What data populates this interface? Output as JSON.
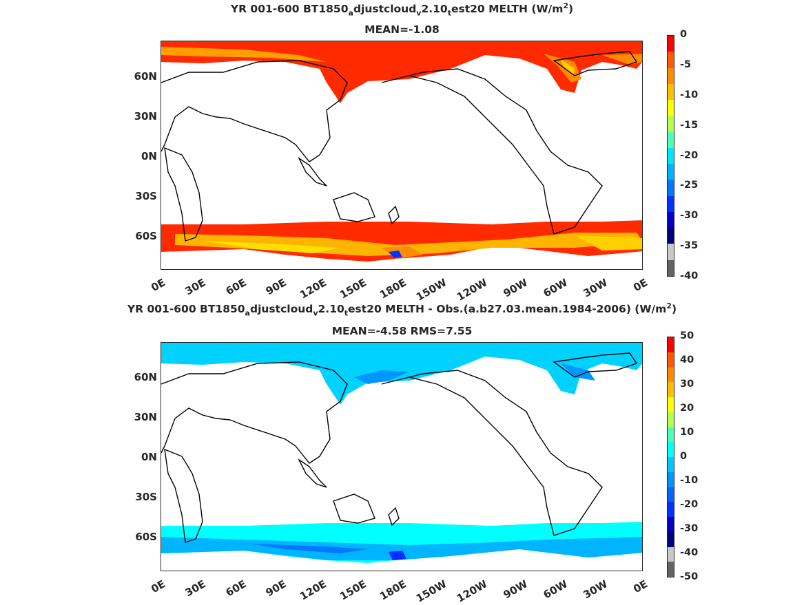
{
  "panel_top": {
    "title_prefix": "YR 001-600 BT1850",
    "title_sub1": "a",
    "title_mid1": "djustcloud",
    "title_sub2": "v",
    "title_mid2": "2.10",
    "title_sub3": "t",
    "title_mid3": "est20  MELTH (W/m",
    "title_sup": "2",
    "title_suffix": ")",
    "subtitle": "MEAN=-1.08",
    "colorbar_ticks": [
      "0",
      "-5",
      "-10",
      "-15",
      "-20",
      "-25",
      "-30",
      "-35",
      "-40"
    ],
    "colorbar_colors": [
      "#ff0000",
      "#ff5a00",
      "#ff8c00",
      "#ffbf00",
      "#ffff00",
      "#b4ff4b",
      "#4bffb4",
      "#00e6ff",
      "#00b4ff",
      "#0078ff",
      "#0032ff",
      "#0000c8",
      "#000080",
      "#c8c8c8",
      "#646464"
    ]
  },
  "panel_bottom": {
    "title_prefix": "YR 001-600 BT1850",
    "title_sub1": "a",
    "title_mid1": "djustcloud",
    "title_sub2": "v",
    "title_mid2": "2.10",
    "title_sub3": "t",
    "title_mid3": "est20 MELTH - Obs.(a.b27.03.mean.1984-2006) (W/m",
    "title_sup": "2",
    "title_suffix": ")",
    "subtitle": "MEAN=-4.58 RMS=7.55",
    "colorbar_ticks": [
      "50",
      "40",
      "30",
      "20",
      "10",
      "0",
      "-10",
      "-20",
      "-30",
      "-40",
      "-50"
    ],
    "colorbar_colors": [
      "#ff0000",
      "#ff5a00",
      "#ff8c00",
      "#ffbf00",
      "#ffff00",
      "#b4ff4b",
      "#4bffb4",
      "#00ffff",
      "#00c8ff",
      "#0096ff",
      "#0064ff",
      "#0032ff",
      "#0000c8",
      "#000080",
      "#c8c8c8",
      "#646464"
    ]
  },
  "lat_ticks": [
    "60N",
    "30N",
    "0N",
    "30S",
    "60S"
  ],
  "lon_ticks": [
    "0E",
    "30E",
    "60E",
    "90E",
    "120E",
    "150E",
    "180E",
    "150W",
    "120W",
    "90W",
    "60W",
    "30W",
    "0E"
  ]
}
